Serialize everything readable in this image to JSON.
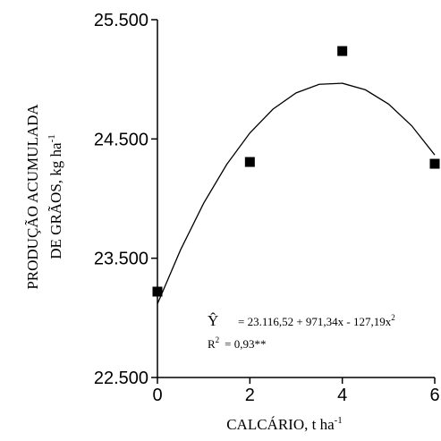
{
  "chart_data": {
    "type": "scatter",
    "y_label": [
      "PRODUÇÃO ACUMULADA",
      "DE GRÃOS, kg ha"
    ],
    "y_label_sup": "-1",
    "x_label": "CALCÁRIO, t ha",
    "x_label_sup": "-1",
    "xlim": [
      0,
      6
    ],
    "xticks": [
      0,
      2,
      4,
      6
    ],
    "ylim": [
      22500,
      25500
    ],
    "yticks": [
      {
        "value": 22500,
        "label": "22.500"
      },
      {
        "value": 23500,
        "label": "23.500"
      },
      {
        "value": 24500,
        "label": "24.500"
      },
      {
        "value": 25500,
        "label": "25.500"
      }
    ],
    "series": [
      {
        "mode": "markers",
        "color": "#000000",
        "x": [
          0,
          2,
          4,
          6
        ],
        "values": [
          23220,
          24307,
          25237,
          24292
        ]
      },
      {
        "mode": "line",
        "color": "#000000",
        "x": [
          0,
          0.5,
          1,
          1.5,
          2,
          2.5,
          3,
          3.5,
          4,
          4.5,
          5,
          5.5,
          6
        ],
        "values": [
          23117,
          23570,
          23961,
          24287,
          24550,
          24750,
          24886,
          24958,
          24967,
          24912,
          24793,
          24611,
          24366
        ]
      }
    ],
    "annotations": {
      "yhat": "Ŷ",
      "equation": "= 23.116,52 + 971,34x - 127,19x",
      "equation_sup": "2",
      "r": "R",
      "r_sup": "2",
      "r_value": "= 0,93**"
    }
  }
}
